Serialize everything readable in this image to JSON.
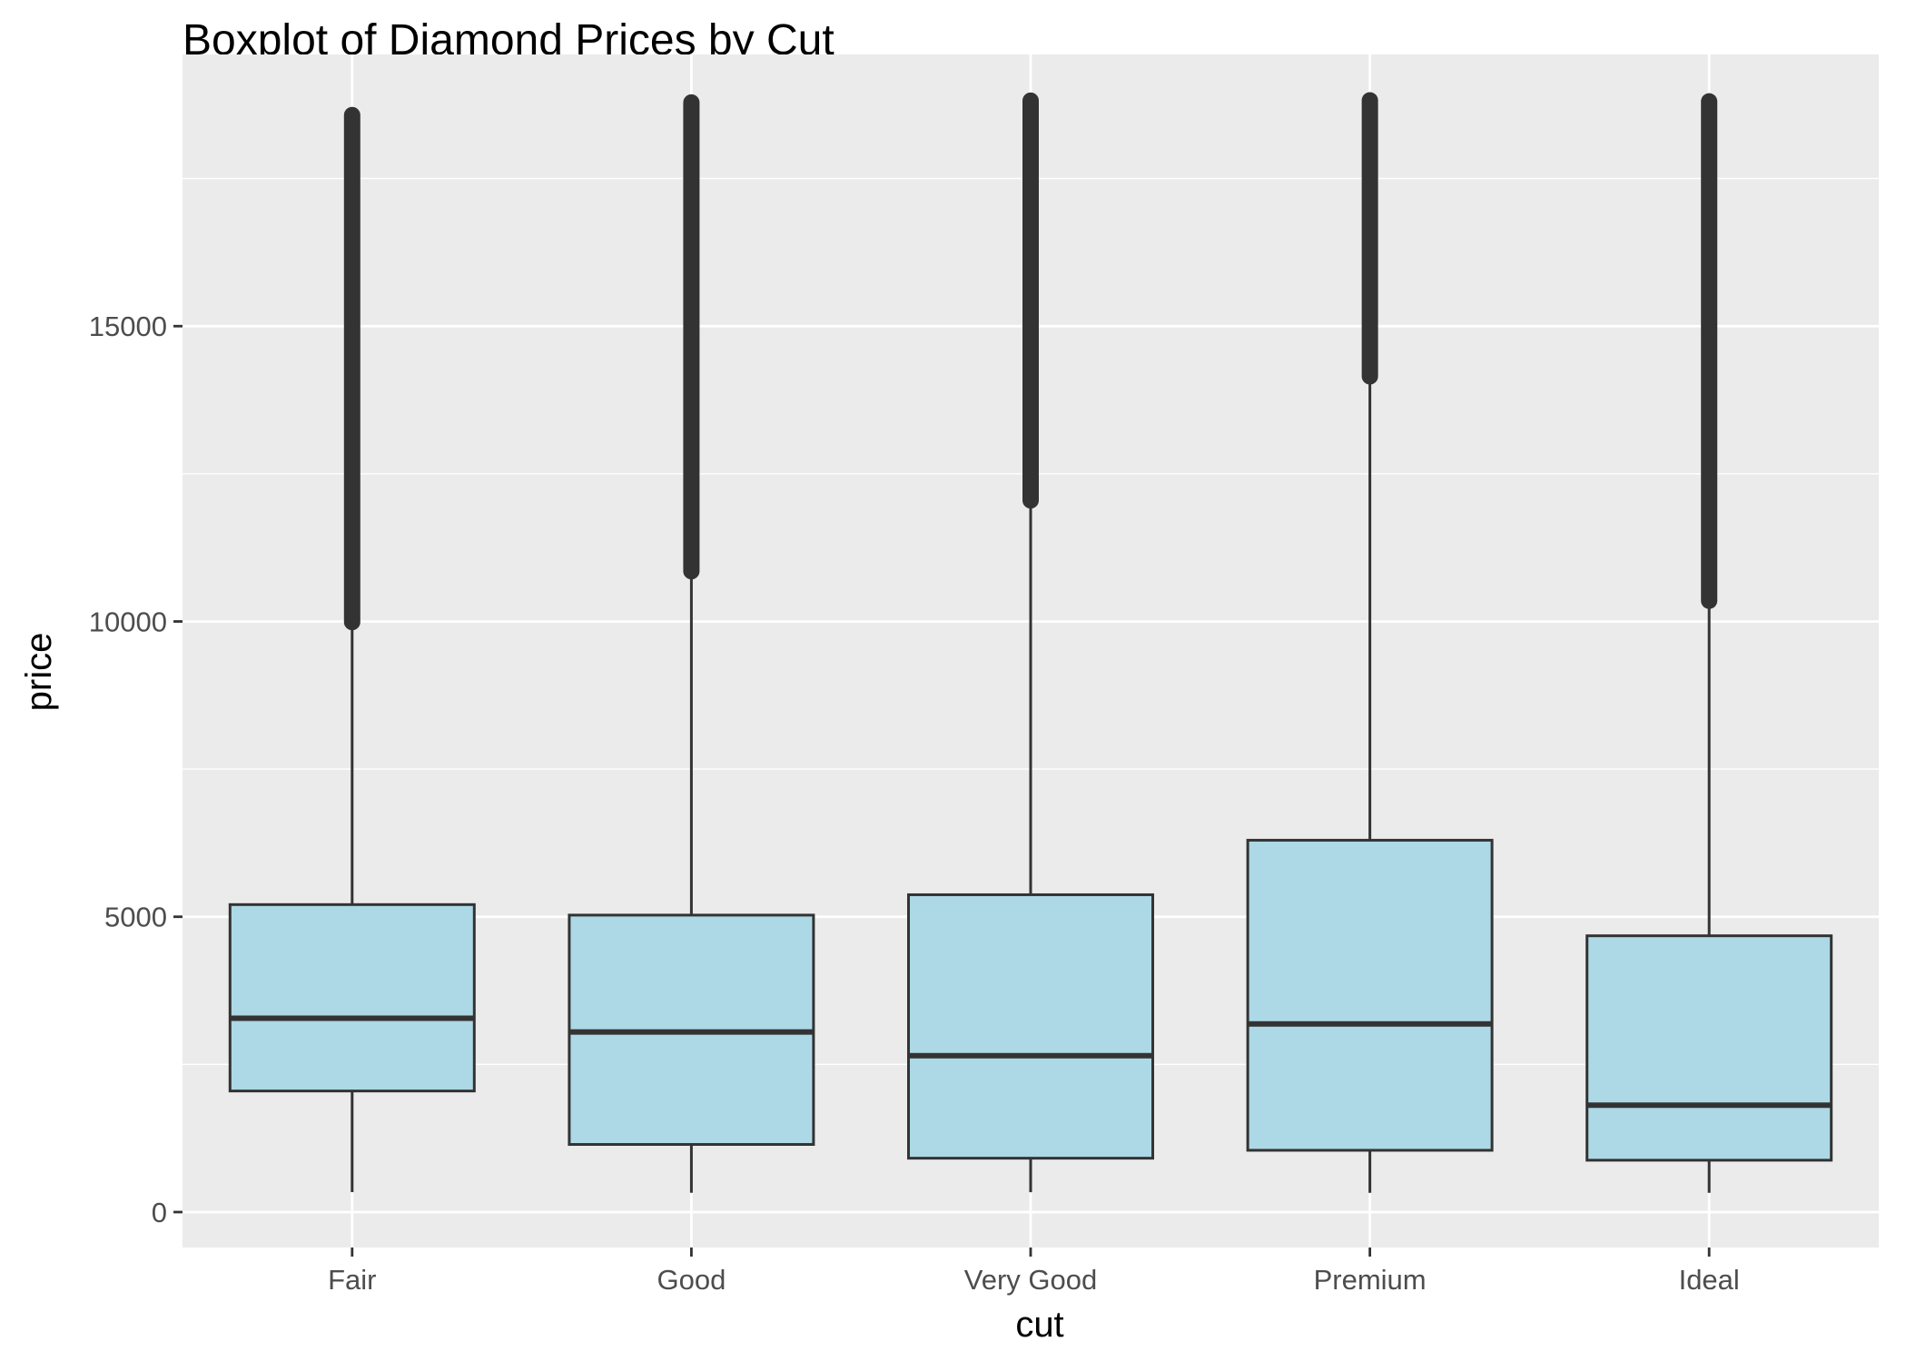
{
  "chart_data": {
    "type": "boxplot",
    "title": "Boxplot of Diamond Prices by Cut",
    "xlabel": "cut",
    "ylabel": "price",
    "ylim": [
      -600,
      19600
    ],
    "yticks": [
      0,
      5000,
      10000,
      15000
    ],
    "ytick_labels": [
      "0",
      "5000",
      "10000",
      "15000"
    ],
    "minor_yticks": [
      2500,
      7500,
      12500,
      17500
    ],
    "categories": [
      "Fair",
      "Good",
      "Very Good",
      "Premium",
      "Ideal"
    ],
    "boxes": [
      {
        "name": "Fair",
        "whisker_low": 337,
        "q1": 2050,
        "median": 3282,
        "q3": 5206,
        "whisker_high": 9950,
        "outliers_min": 9990,
        "outliers_max": 18574
      },
      {
        "name": "Good",
        "whisker_low": 327,
        "q1": 1145,
        "median": 3050,
        "q3": 5028,
        "whisker_high": 10800,
        "outliers_min": 10850,
        "outliers_max": 18788
      },
      {
        "name": "Very Good",
        "whisker_low": 336,
        "q1": 912,
        "median": 2648,
        "q3": 5373,
        "whisker_high": 12000,
        "outliers_min": 12050,
        "outliers_max": 18818
      },
      {
        "name": "Premium",
        "whisker_low": 326,
        "q1": 1046,
        "median": 3185,
        "q3": 6296,
        "whisker_high": 14100,
        "outliers_min": 14150,
        "outliers_max": 18823
      },
      {
        "name": "Ideal",
        "whisker_low": 326,
        "q1": 878,
        "median": 1810,
        "q3": 4678,
        "whisker_high": 10300,
        "outliers_min": 10350,
        "outliers_max": 18806
      }
    ],
    "colors": {
      "box_fill": "#add8e6",
      "box_stroke": "#333333",
      "panel_bg": "#ebebeb",
      "grid": "#ffffff",
      "tick_text": "#4d4d4d",
      "title_text": "#000000"
    },
    "grid": true
  }
}
